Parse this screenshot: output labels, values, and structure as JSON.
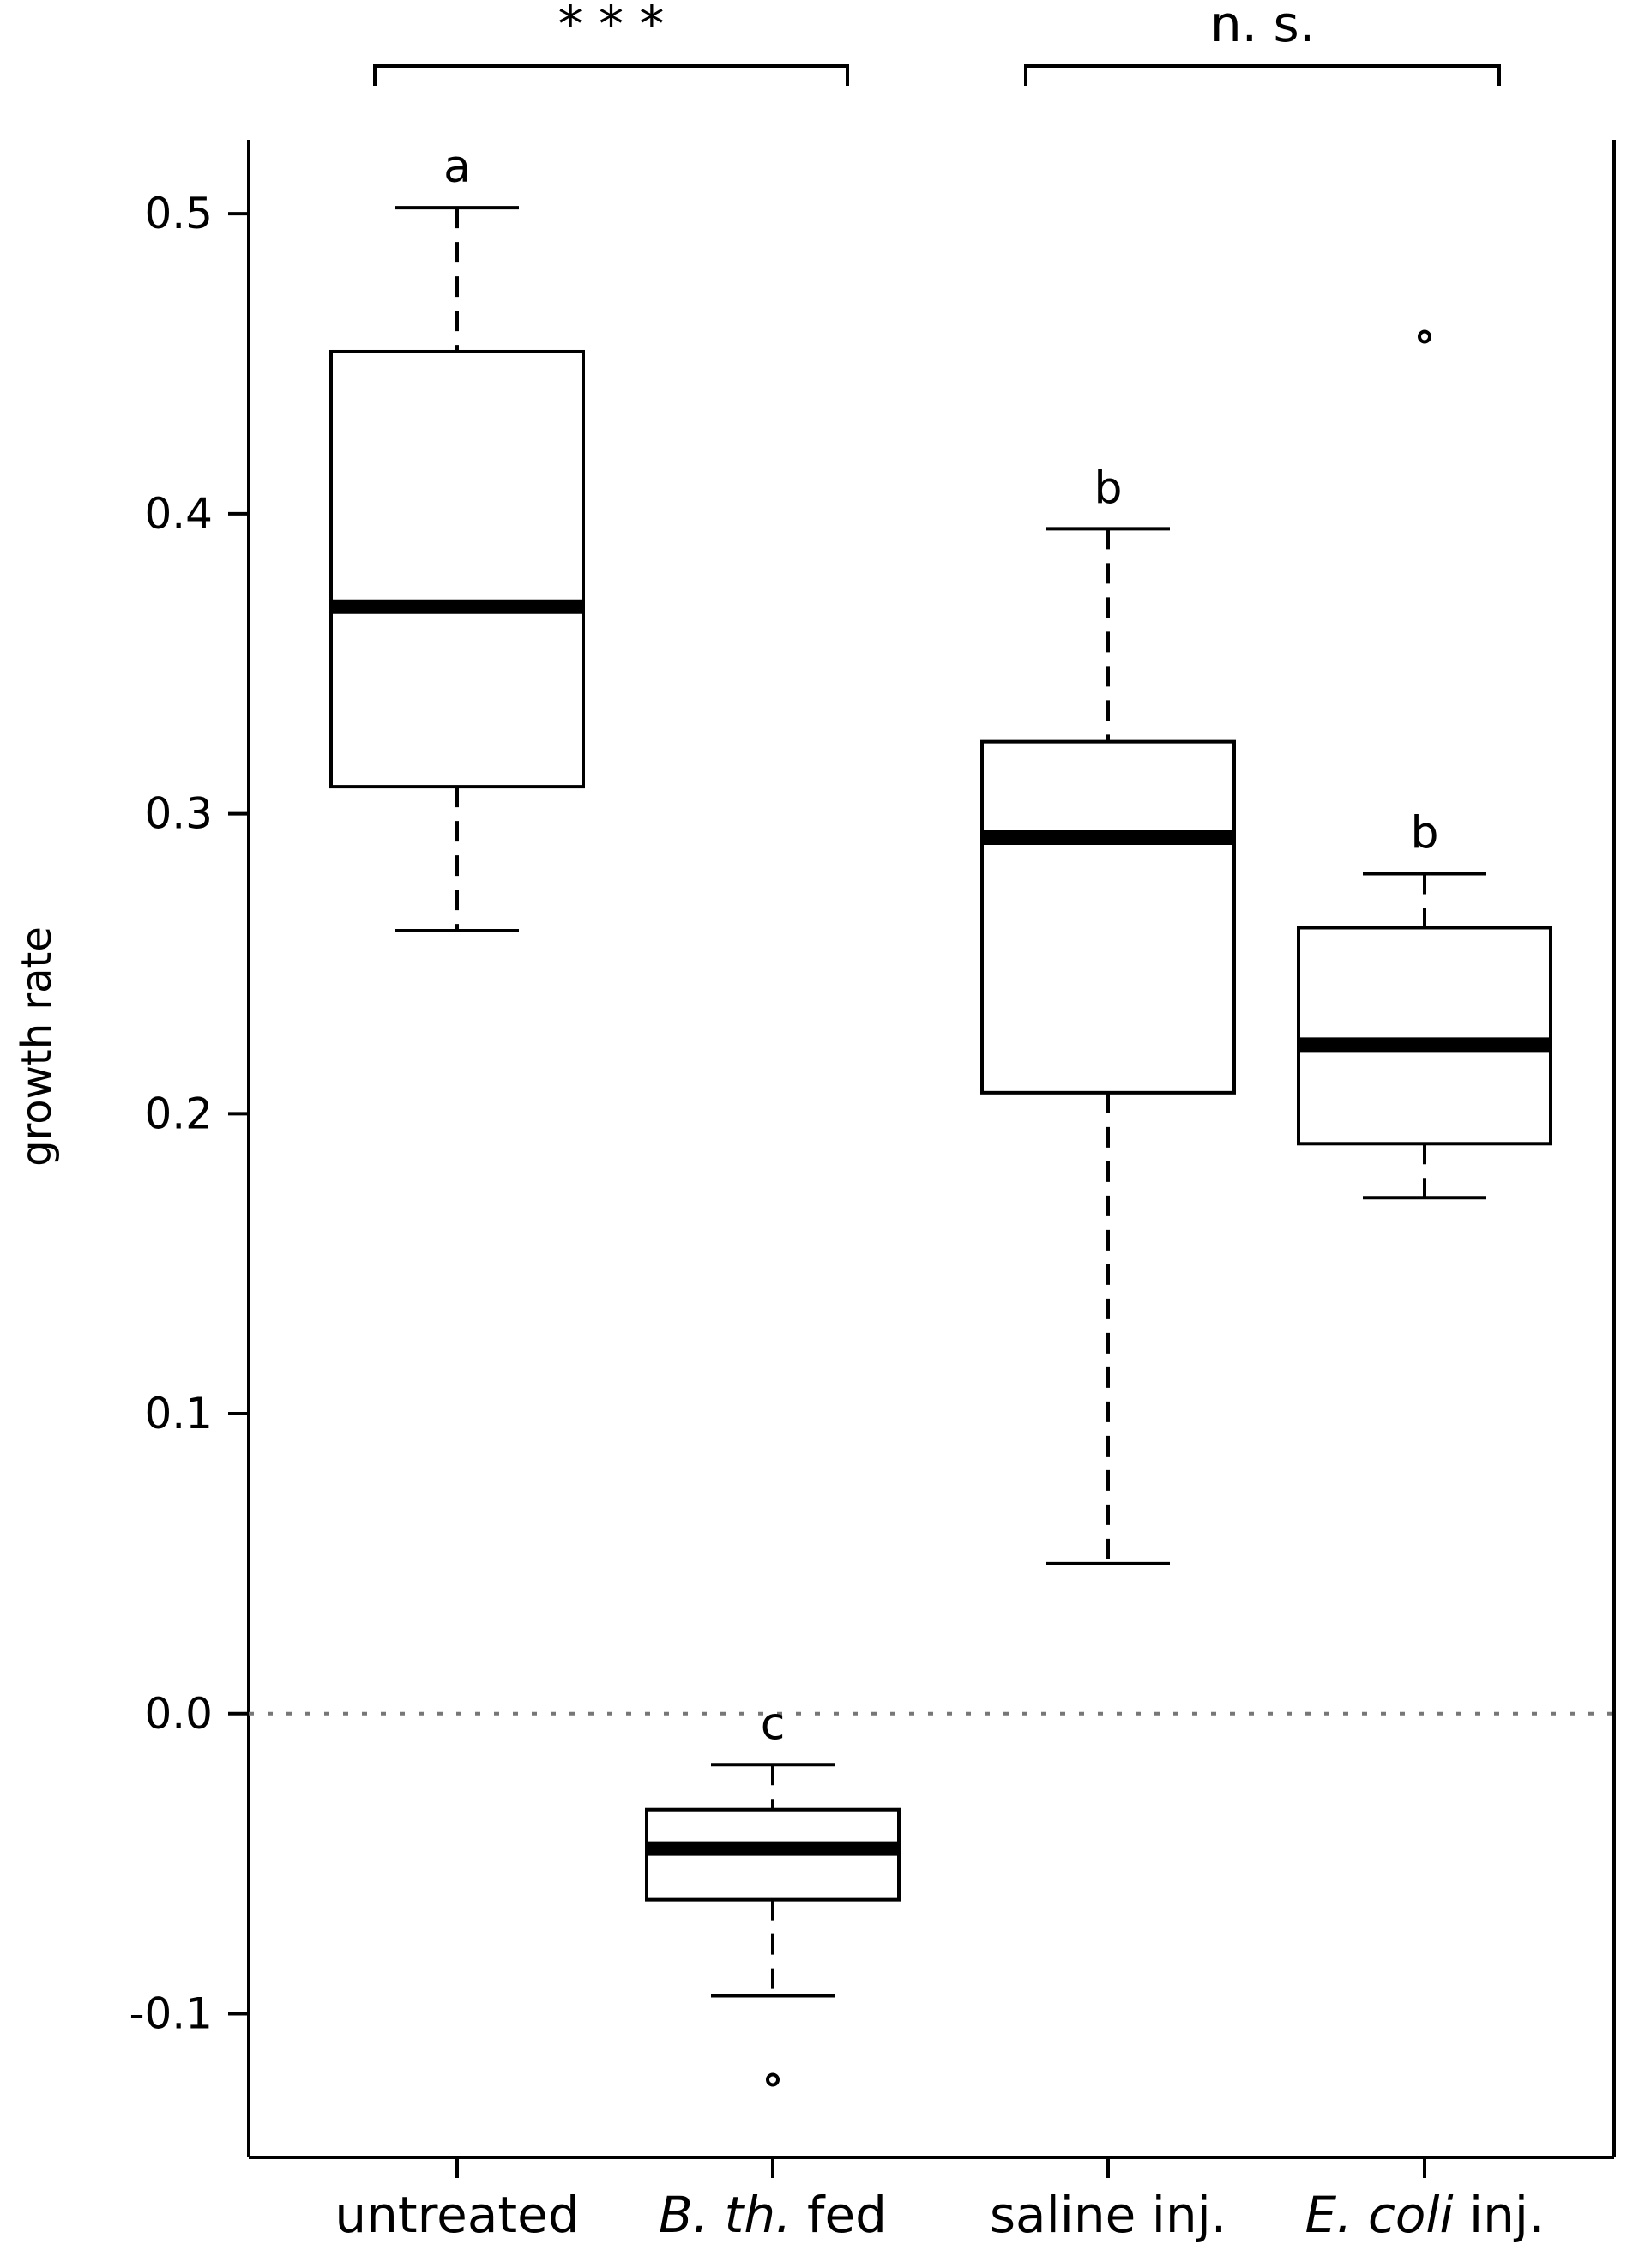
{
  "chart_data": {
    "type": "box",
    "ylabel": "growth rate",
    "xlabel": "",
    "ylim": [
      -0.15,
      0.56
    ],
    "yticks": [
      -0.1,
      0.0,
      0.1,
      0.2,
      0.3,
      0.4,
      0.5
    ],
    "ytick_labels": [
      "-0.1",
      "0.0",
      "0.1",
      "0.2",
      "0.3",
      "0.4",
      "0.5"
    ],
    "grid": false,
    "reference_line": {
      "y": 0.0,
      "style": "dotted"
    },
    "categories": [
      {
        "label_parts": [
          {
            "text": "untreated",
            "italic": false
          }
        ]
      },
      {
        "label_parts": [
          {
            "text": "B. th.",
            "italic": true
          },
          {
            "text": " fed",
            "italic": false
          }
        ]
      },
      {
        "label_parts": [
          {
            "text": "saline inj.",
            "italic": false
          }
        ]
      },
      {
        "label_parts": [
          {
            "text": "E. coli",
            "italic": true
          },
          {
            "text": " inj.",
            "italic": false
          }
        ]
      }
    ],
    "boxes": [
      {
        "whisker_low": 0.261,
        "q1": 0.309,
        "median": 0.369,
        "q3": 0.454,
        "whisker_high": 0.502,
        "outliers": [],
        "letter": "a"
      },
      {
        "whisker_low": -0.094,
        "q1": -0.062,
        "median": -0.045,
        "q3": -0.032,
        "whisker_high": -0.017,
        "outliers": [
          -0.122
        ],
        "letter": "c"
      },
      {
        "whisker_low": 0.05,
        "q1": 0.207,
        "median": 0.292,
        "q3": 0.324,
        "whisker_high": 0.395,
        "outliers": [],
        "letter": "b"
      },
      {
        "whisker_low": 0.172,
        "q1": 0.19,
        "median": 0.223,
        "q3": 0.262,
        "whisker_high": 0.28,
        "outliers": [
          0.459
        ],
        "letter": "b"
      }
    ],
    "comparisons": [
      {
        "from": 0,
        "to": 1,
        "label": "* * *"
      },
      {
        "from": 2,
        "to": 3,
        "label": "n. s."
      }
    ]
  }
}
